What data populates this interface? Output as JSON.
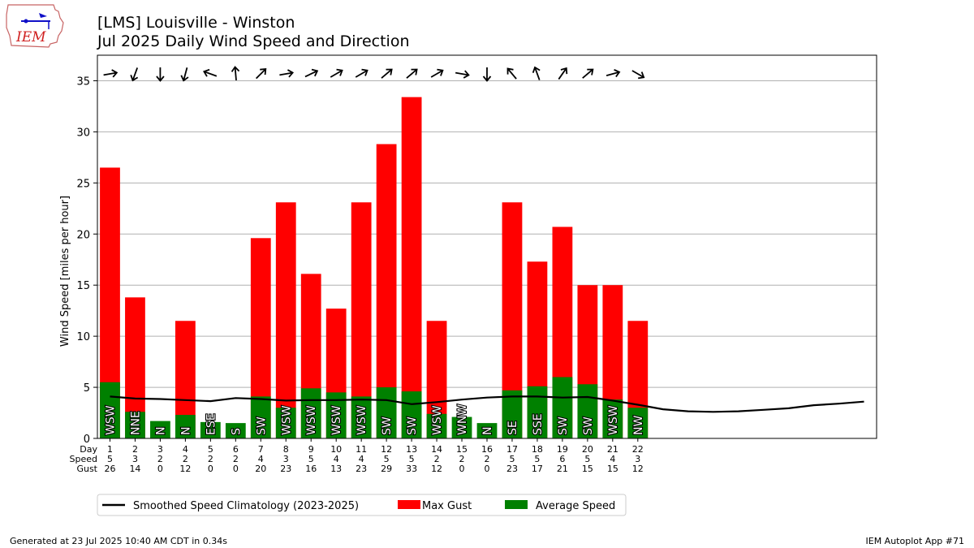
{
  "header": {
    "title": "[LMS] Louisville - Winston",
    "subtitle": "Jul 2025 Daily Wind Speed and Direction"
  },
  "logo": {
    "text": "IEM"
  },
  "footer": {
    "left": "Generated at 23 Jul 2025 10:40 AM CDT in 0.34s",
    "right": "IEM Autoplot App #71"
  },
  "colors": {
    "gust": "#ff0000",
    "average": "#008000",
    "climatology": "#000000",
    "grid": "#b0b0b0"
  },
  "chart_data": {
    "type": "bar",
    "ylabel": "Wind Speed [miles per hour]",
    "ylim": [
      0,
      37.5
    ],
    "yticks": [
      0,
      5,
      10,
      15,
      20,
      25,
      30,
      35
    ],
    "grid": true,
    "legend_position": "bottom",
    "x_range": [
      0.5,
      31.5
    ],
    "row_labels": [
      "Day",
      "Speed",
      "Gust"
    ],
    "days": [
      1,
      2,
      3,
      4,
      5,
      6,
      7,
      8,
      9,
      10,
      11,
      12,
      13,
      14,
      15,
      16,
      17,
      18,
      19,
      20,
      21,
      22
    ],
    "speed_labels": [
      "5",
      "3",
      "2",
      "2",
      "2",
      "2",
      "4",
      "3",
      "5",
      "4",
      "4",
      "5",
      "5",
      "2",
      "2",
      "2",
      "5",
      "5",
      "6",
      "5",
      "4",
      "3"
    ],
    "gust_labels": [
      "26",
      "14",
      "0",
      "12",
      "0",
      "0",
      "20",
      "23",
      "16",
      "13",
      "23",
      "29",
      "33",
      "12",
      "0",
      "0",
      "23",
      "17",
      "21",
      "15",
      "15",
      "12"
    ],
    "average_speed": [
      5.5,
      2.6,
      1.7,
      2.3,
      1.6,
      1.5,
      4.1,
      3.0,
      4.9,
      4.5,
      4.1,
      5.0,
      4.6,
      2.4,
      2.1,
      1.5,
      4.7,
      5.1,
      6.0,
      5.3,
      3.8,
      3.0
    ],
    "max_gust": [
      26.5,
      13.8,
      0,
      11.5,
      0,
      0,
      19.6,
      23.1,
      16.1,
      12.7,
      23.1,
      28.8,
      33.4,
      11.5,
      0,
      0,
      23.1,
      17.3,
      20.7,
      15.0,
      15.0,
      11.5
    ],
    "direction_labels": [
      "WSW",
      "NNE",
      "N",
      "N",
      "ESE",
      "S",
      "SW",
      "WSW",
      "WSW",
      "WSW",
      "WSW",
      "SW",
      "SW",
      "WSW",
      "WNW",
      "N",
      "SE",
      "SSE",
      "SW",
      "SW",
      "WSW",
      "NW"
    ],
    "arrow_rotation_deg": [
      80,
      200,
      180,
      195,
      290,
      355,
      45,
      80,
      65,
      60,
      60,
      50,
      50,
      60,
      100,
      180,
      320,
      340,
      35,
      50,
      75,
      120
    ],
    "climatology": {
      "name": "Smoothed Speed Climatology (2023-2025)",
      "x": [
        1,
        2,
        3,
        4,
        5,
        6,
        7,
        8,
        9,
        10,
        11,
        12,
        13,
        14,
        15,
        16,
        17,
        18,
        19,
        20,
        21,
        22,
        23,
        24,
        25,
        26,
        27,
        28,
        29,
        30,
        31
      ],
      "y": [
        4.1,
        3.9,
        3.85,
        3.75,
        3.65,
        3.95,
        3.85,
        3.7,
        3.75,
        3.75,
        3.8,
        3.75,
        3.35,
        3.55,
        3.8,
        4.0,
        4.1,
        4.1,
        4.0,
        4.05,
        3.7,
        3.3,
        2.85,
        2.65,
        2.6,
        2.65,
        2.8,
        2.95,
        3.25,
        3.4,
        3.6
      ]
    },
    "legend": [
      {
        "label": "Smoothed Speed Climatology (2023-2025)",
        "kind": "line"
      },
      {
        "label": "Max Gust",
        "kind": "patch"
      },
      {
        "label": "Average Speed",
        "kind": "patch"
      }
    ]
  }
}
